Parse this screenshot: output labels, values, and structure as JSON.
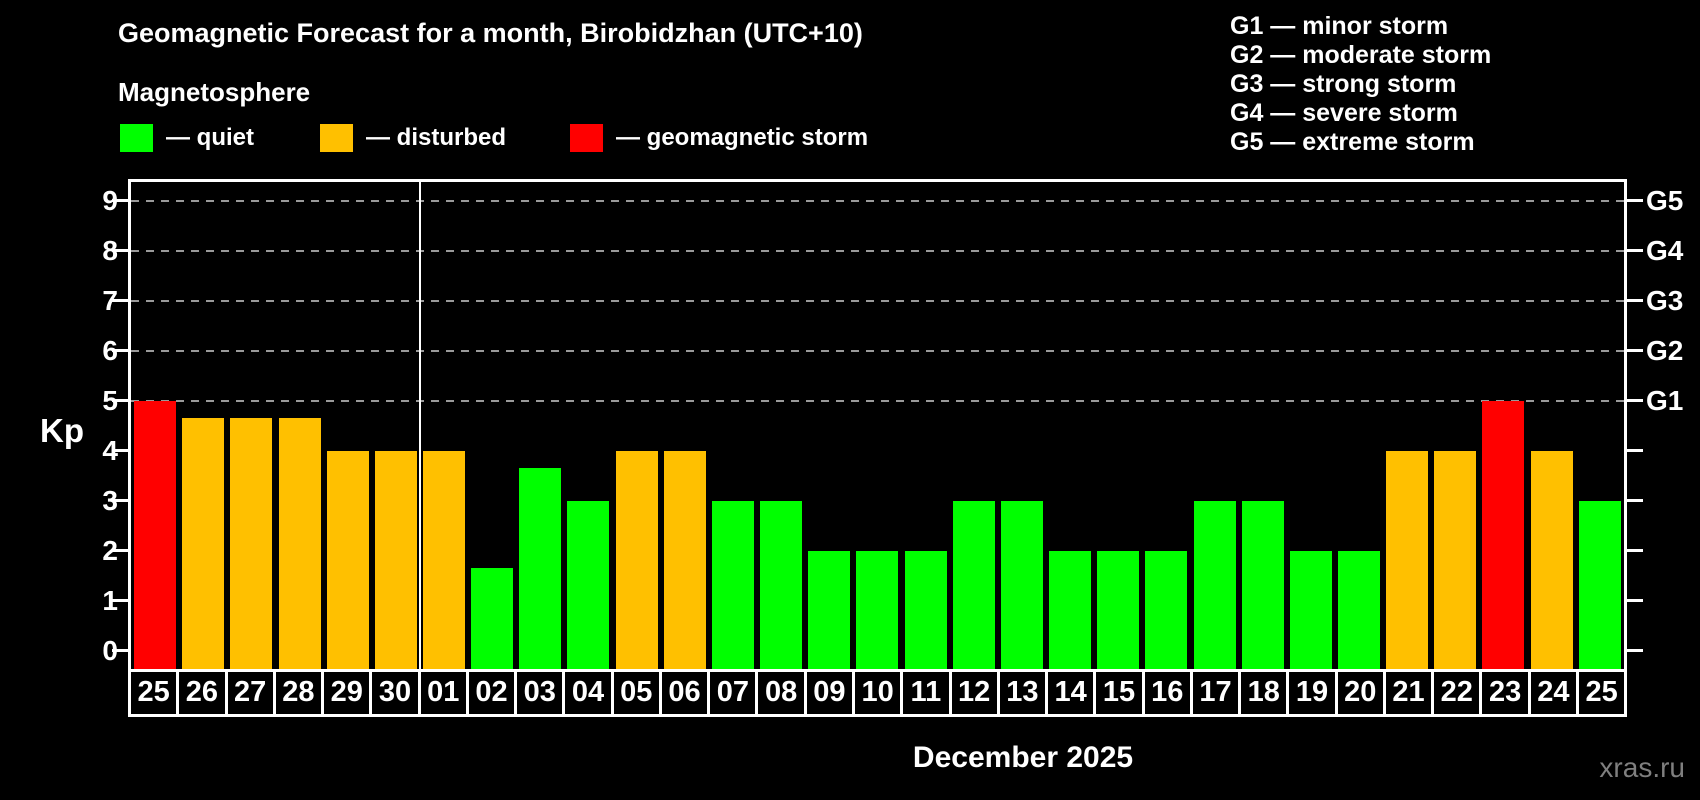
{
  "title": "Geomagnetic Forecast for a month, Birobidzhan (UTC+10)",
  "subtitle": "Magnetosphere",
  "watermark": "xras.ru",
  "legend": {
    "quiet": {
      "label": "— quiet",
      "color": "#00ff00"
    },
    "disturbed": {
      "label": "— disturbed",
      "color": "#ffc000"
    },
    "storm": {
      "label": "— geomagnetic storm",
      "color": "#ff0000"
    }
  },
  "g_legend": [
    "G1 — minor storm",
    "G2 — moderate storm",
    "G3 — strong storm",
    "G4 — severe storm",
    "G5 — extreme storm"
  ],
  "colors": {
    "background": "#000000",
    "text": "#ffffff",
    "gridline": "#9a9a9a",
    "watermark": "#7f7f7f"
  },
  "chart_data": {
    "type": "bar",
    "title": "Geomagnetic Forecast for a month, Birobidzhan (UTC+10)",
    "xlabel": "December 2025",
    "ylabel": "Kp",
    "ylim": [
      0,
      9.4
    ],
    "yticks": [
      0,
      1,
      2,
      3,
      4,
      5,
      6,
      7,
      8,
      9
    ],
    "gridlines_at_kp": [
      5,
      6,
      7,
      8,
      9
    ],
    "grid": "dashed horizontal lines at Kp 5-9 only",
    "legend_position": "top-left",
    "right_axis": [
      {
        "kp": 5,
        "label": "G1"
      },
      {
        "kp": 6,
        "label": "G2"
      },
      {
        "kp": 7,
        "label": "G3"
      },
      {
        "kp": 8,
        "label": "G4"
      },
      {
        "kp": 9,
        "label": "G5"
      }
    ],
    "month_separator_after_bar": 6,
    "colors": {
      "quiet": "#00ff00",
      "disturbed": "#ffc000",
      "storm": "#ff0000"
    },
    "bars": [
      {
        "day": "25",
        "kp": 5,
        "status": "storm"
      },
      {
        "day": "26",
        "kp": 4.67,
        "status": "disturbed"
      },
      {
        "day": "27",
        "kp": 4.67,
        "status": "disturbed"
      },
      {
        "day": "28",
        "kp": 4.67,
        "status": "disturbed"
      },
      {
        "day": "29",
        "kp": 4,
        "status": "disturbed"
      },
      {
        "day": "30",
        "kp": 4,
        "status": "disturbed"
      },
      {
        "day": "01",
        "kp": 4,
        "status": "disturbed"
      },
      {
        "day": "02",
        "kp": 1.67,
        "status": "quiet"
      },
      {
        "day": "03",
        "kp": 3.67,
        "status": "quiet"
      },
      {
        "day": "04",
        "kp": 3,
        "status": "quiet"
      },
      {
        "day": "05",
        "kp": 4,
        "status": "disturbed"
      },
      {
        "day": "06",
        "kp": 4,
        "status": "disturbed"
      },
      {
        "day": "07",
        "kp": 3,
        "status": "quiet"
      },
      {
        "day": "08",
        "kp": 3,
        "status": "quiet"
      },
      {
        "day": "09",
        "kp": 2,
        "status": "quiet"
      },
      {
        "day": "10",
        "kp": 2,
        "status": "quiet"
      },
      {
        "day": "11",
        "kp": 2,
        "status": "quiet"
      },
      {
        "day": "12",
        "kp": 3,
        "status": "quiet"
      },
      {
        "day": "13",
        "kp": 3,
        "status": "quiet"
      },
      {
        "day": "14",
        "kp": 2,
        "status": "quiet"
      },
      {
        "day": "15",
        "kp": 2,
        "status": "quiet"
      },
      {
        "day": "16",
        "kp": 2,
        "status": "quiet"
      },
      {
        "day": "17",
        "kp": 3,
        "status": "quiet"
      },
      {
        "day": "18",
        "kp": 3,
        "status": "quiet"
      },
      {
        "day": "19",
        "kp": 2,
        "status": "quiet"
      },
      {
        "day": "20",
        "kp": 2,
        "status": "quiet"
      },
      {
        "day": "21",
        "kp": 4,
        "status": "disturbed"
      },
      {
        "day": "22",
        "kp": 4,
        "status": "disturbed"
      },
      {
        "day": "23",
        "kp": 5,
        "status": "storm"
      },
      {
        "day": "24",
        "kp": 4,
        "status": "disturbed"
      },
      {
        "day": "25",
        "kp": 3,
        "status": "quiet"
      }
    ]
  }
}
